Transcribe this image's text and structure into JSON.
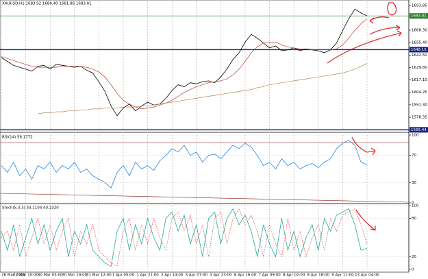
{
  "chart_data": [
    {
      "type": "line",
      "title": "XAUUSD,H1  1683.92 1684.40 1681.86 1683.01",
      "categories": [
        "26 Mar 2020",
        null,
        null,
        null,
        "27 Mar 10:00",
        null,
        null,
        null,
        "30 Mar 03:00",
        null,
        null,
        null,
        "30 Mar 19:00",
        null,
        null,
        null,
        "31 Mar 12:00",
        null,
        null,
        null,
        "1 Apr 05:00",
        null,
        null,
        null,
        "1 Apr 21:00",
        null,
        null,
        null,
        "2 Apr 14:00",
        null,
        null,
        null,
        "3 Apr 07:00",
        null,
        null,
        null,
        "3 Apr 23:00",
        null,
        null,
        null,
        "6 Apr 16:00",
        null,
        null,
        null,
        "7 Apr 09:00",
        null,
        null,
        null,
        "8 Apr 02:00",
        null,
        null,
        null,
        "8 Apr 18:00",
        null,
        null,
        null,
        "9 Apr 11:00",
        null,
        null,
        null,
        "13 Apr 04:00"
      ],
      "series": [
        {
          "color": "#000000",
          "values": [
            1640,
            1636,
            1632,
            1630,
            1628,
            1626,
            1631,
            1632,
            1628,
            1633,
            1632,
            1631,
            1630,
            1631,
            1627,
            1624,
            1615,
            1605,
            1590,
            1580,
            1588,
            1592,
            1585,
            1590,
            1594,
            1591,
            1592,
            1598,
            1606,
            1612,
            1610,
            1614,
            1613,
            1615,
            1616,
            1614,
            1620,
            1628,
            1638,
            1645,
            1656,
            1664,
            1660,
            1655,
            1650,
            1652,
            1647,
            1648,
            1650,
            1647,
            1649,
            1648,
            1647,
            1645,
            1648,
            1655,
            1668,
            1680,
            1690,
            1686,
            1683
          ]
        },
        {
          "color": "#c0392b",
          "values": [
            1641,
            1639,
            1637,
            1635,
            1633,
            1631,
            1630,
            1630,
            1630,
            1630,
            1631,
            1631,
            1631,
            1631,
            1630,
            1628,
            1625,
            1620,
            1612,
            1603,
            1596,
            1592,
            1589,
            1587,
            1588,
            1589,
            1591,
            1593,
            1596,
            1600,
            1604,
            1607,
            1610,
            1612,
            1614,
            1615,
            1616,
            1618,
            1622,
            1628,
            1636,
            1645,
            1651,
            1655,
            1656,
            1656,
            1653,
            1651,
            1650,
            1649,
            1649,
            1648,
            1648,
            1648,
            1648,
            1649,
            1653,
            1660,
            1668,
            1675,
            1680
          ]
        },
        {
          "color": "#b5865a",
          "values": [
            null,
            null,
            null,
            null,
            null,
            null,
            1582,
            1583,
            1583,
            1584,
            1584,
            1585,
            1585,
            1586,
            1586,
            1587,
            1587,
            1588,
            1588,
            1588,
            1589,
            1589,
            1589,
            1590,
            1590,
            1591,
            1592,
            1593,
            1594,
            1595,
            1596,
            1597,
            1598,
            1599,
            1600,
            1601,
            1602,
            1603,
            1604,
            1605,
            1606,
            1607,
            1609,
            1610,
            1612,
            1613,
            1614,
            1615,
            1616,
            1617,
            1618,
            1619,
            1620,
            1621,
            1622,
            1623,
            1624,
            1626,
            1628,
            1631,
            1634
          ]
        }
      ],
      "ylim": [
        1565,
        1698
      ],
      "yticks": [
        1693.85,
        {
          "value": 1668.3,
          "label": "1668.30"
        },
        {
          "value": 1655.4,
          "label": "1655.40"
        },
        {
          "value": 1642.5,
          "label": "1642.50"
        },
        {
          "value": 1629.8,
          "label": "1629.80"
        },
        {
          "value": 1617.1,
          "label": "1617.10"
        },
        1604.25,
        {
          "value": 1591.3,
          "label": "1591.30"
        },
        1578.35
      ],
      "hlines": [
        {
          "value": 1683.01,
          "color": "#2e7d32"
        },
        {
          "value": 1648.15,
          "color": "#1a237e"
        },
        {
          "value": 1565.44,
          "color": "#1a237e"
        }
      ],
      "grid": true
    },
    {
      "type": "line",
      "title": "RSI(14) 56.1772",
      "series": [
        {
          "color": "#1e88e5",
          "values": [
            55,
            45,
            60,
            40,
            50,
            35,
            55,
            50,
            60,
            45,
            55,
            50,
            60,
            45,
            50,
            40,
            35,
            30,
            22,
            45,
            55,
            40,
            60,
            50,
            55,
            48,
            62,
            70,
            80,
            75,
            85,
            70,
            75,
            60,
            70,
            72,
            65,
            75,
            85,
            80,
            88,
            82,
            70,
            55,
            60,
            50,
            65,
            55,
            60,
            50,
            55,
            58,
            52,
            60,
            65,
            80,
            88,
            92,
            85,
            60,
            56
          ]
        }
      ],
      "ylim": [
        0,
        100
      ],
      "yticks": [
        100,
        70,
        30,
        0
      ],
      "grid": true
    },
    {
      "type": "line",
      "title": "Stoch(5,3,3) 33.1104 40.2320",
      "series": [
        {
          "color": "#26a69a",
          "values": [
            60,
            30,
            70,
            20,
            50,
            80,
            40,
            70,
            30,
            60,
            80,
            20,
            60,
            40,
            70,
            30,
            20,
            10,
            5,
            60,
            80,
            30,
            70,
            40,
            80,
            50,
            30,
            80,
            90,
            60,
            85,
            40,
            70,
            20,
            80,
            90,
            40,
            80,
            95,
            70,
            85,
            60,
            20,
            70,
            40,
            20,
            80,
            30,
            60,
            20,
            50,
            70,
            30,
            80,
            60,
            85,
            90,
            95,
            70,
            30,
            33
          ]
        },
        {
          "color": "#e53935",
          "dash": true,
          "values": [
            50,
            60,
            30,
            70,
            20,
            50,
            80,
            40,
            70,
            30,
            60,
            80,
            20,
            60,
            40,
            70,
            30,
            20,
            10,
            5,
            60,
            80,
            30,
            70,
            40,
            80,
            50,
            30,
            80,
            90,
            60,
            85,
            40,
            70,
            20,
            80,
            90,
            40,
            80,
            95,
            70,
            85,
            60,
            20,
            70,
            40,
            20,
            80,
            30,
            60,
            20,
            50,
            70,
            30,
            80,
            60,
            85,
            90,
            95,
            70,
            40
          ]
        }
      ],
      "ylim": [
        0,
        100
      ],
      "yticks": [
        100,
        80,
        20,
        0
      ],
      "grid": true
    }
  ]
}
